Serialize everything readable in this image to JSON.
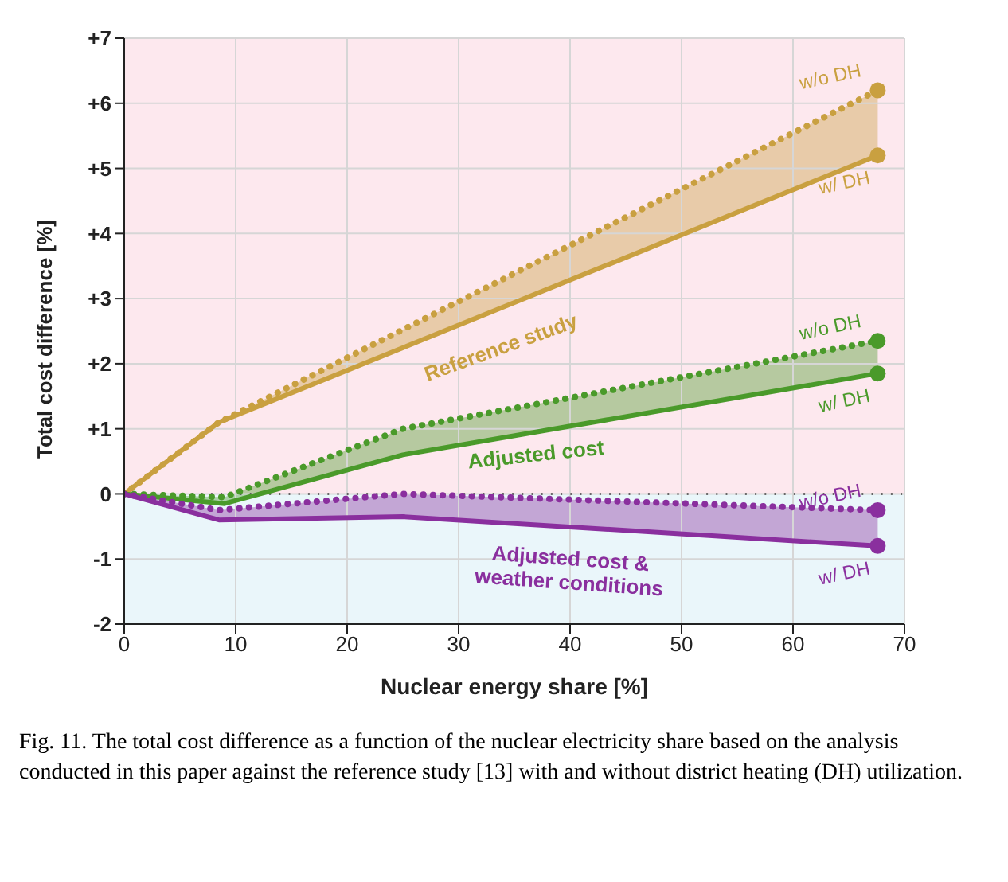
{
  "chart_data": {
    "type": "line",
    "xlabel": "Nuclear energy share [%]",
    "ylabel": "Total cost difference [%]",
    "xlim": [
      0,
      70
    ],
    "xticks": [
      0,
      10,
      20,
      30,
      40,
      50,
      60,
      70
    ],
    "ylim": [
      -2,
      7
    ],
    "yticks": [
      {
        "value": -2,
        "label": "-2"
      },
      {
        "value": -1,
        "label": "-1"
      },
      0,
      {
        "value": 1,
        "label": "+1"
      },
      {
        "value": 2,
        "label": "+2"
      },
      {
        "value": 3,
        "label": "+3"
      },
      {
        "value": 4,
        "label": "+4"
      },
      {
        "value": 5,
        "label": "+5"
      },
      {
        "value": 6,
        "label": "+6"
      },
      {
        "value": 7,
        "label": "+7"
      }
    ],
    "grid": true,
    "series": [
      {
        "name": "w/o DH",
        "color": "#c9a040",
        "line_style": "dotted",
        "x": [
          0,
          8.5,
          67.6
        ],
        "values": [
          0,
          1.1,
          6.2
        ]
      },
      {
        "name": "w/ DH",
        "color": "#c9a040",
        "line_style": "solid",
        "x": [
          0,
          8.5,
          67.6
        ],
        "values": [
          0,
          1.1,
          5.2
        ],
        "lower": [
          0,
          1.1,
          5.2
        ],
        "upper": [
          0,
          1.1,
          6.2
        ]
      },
      {
        "name": "w/o DH",
        "color": "#4a9a2a",
        "line_style": "dotted",
        "x": [
          0,
          9,
          25,
          67.6
        ],
        "values": [
          0,
          -0.05,
          1.0,
          2.35
        ]
      },
      {
        "name": "w/ DH",
        "color": "#4a9a2a",
        "line_style": "solid",
        "x": [
          0,
          9,
          25,
          67.6
        ],
        "values": [
          0,
          -0.15,
          0.6,
          1.85
        ],
        "lower": [
          0,
          -0.15,
          0.6,
          1.85
        ],
        "upper": [
          0,
          -0.05,
          1.0,
          2.35
        ]
      },
      {
        "name": "w/o DH",
        "color": "#8a2f9e",
        "line_style": "dotted",
        "x": [
          0,
          8.5,
          25,
          67.6
        ],
        "values": [
          0,
          -0.25,
          0.0,
          -0.25
        ]
      },
      {
        "name": "w/ DH",
        "color": "#8a2f9e",
        "line_style": "solid",
        "x": [
          0,
          8.5,
          25,
          67.6
        ],
        "values": [
          0,
          -0.4,
          -0.35,
          -0.8
        ],
        "lower": [
          0,
          -0.4,
          -0.35,
          -0.8
        ],
        "upper": [
          0,
          -0.25,
          0.0,
          -0.25
        ]
      }
    ],
    "bands": [
      {
        "axis": "y",
        "from": 0,
        "to": 7,
        "color": "#fde8ee"
      },
      {
        "axis": "y",
        "from": -2,
        "to": 0,
        "color": "#eaf6fa"
      }
    ],
    "ref_lines": [
      {
        "axis": "y",
        "value": 0,
        "color": "#333333",
        "line_style": "dotted"
      }
    ],
    "annotations": [
      "Reference study",
      "Adjusted cost",
      "Adjusted cost &\nweather conditions",
      "Fig. 11. The total cost difference as a function of the nuclear electricity share based on the analysis conducted in this paper against the reference study [13] with and without district heating (DH) utilization."
    ]
  }
}
